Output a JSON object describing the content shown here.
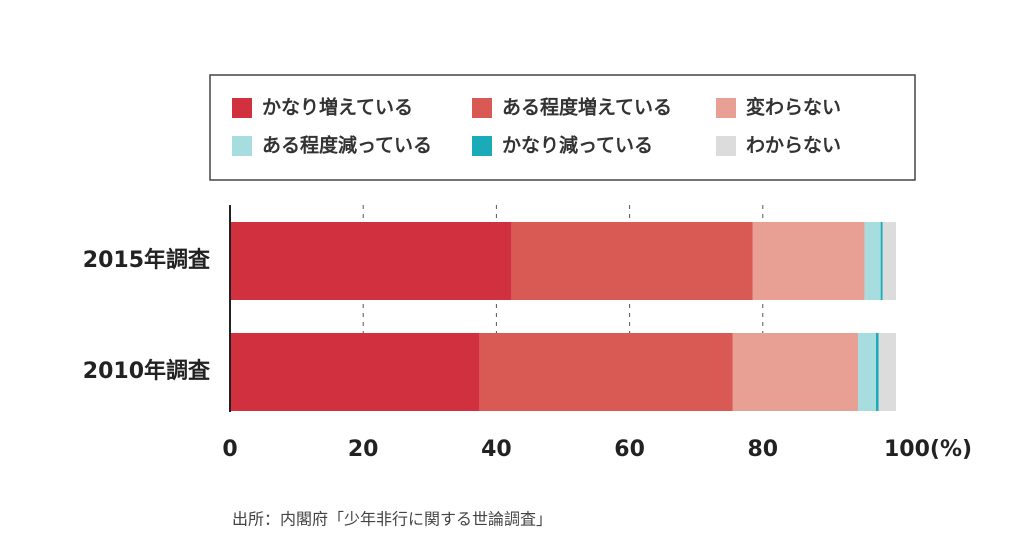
{
  "chart_data": {
    "type": "stacked_barh",
    "categories": [
      "2015年調査",
      "2010年調査"
    ],
    "series": [
      {
        "name": "かなり増えている",
        "color": "#d1303f",
        "values": [
          42.3,
          37.5
        ]
      },
      {
        "name": "ある程度増えている",
        "color": "#d95a55",
        "values": [
          36.2,
          38.0
        ]
      },
      {
        "name": "変わらない",
        "color": "#e8a095",
        "values": [
          16.8,
          18.8
        ]
      },
      {
        "name": "ある程度減っている",
        "color": "#a8dde0",
        "values": [
          2.4,
          2.7
        ]
      },
      {
        "name": "かなり減っている",
        "color": "#1aaab8",
        "values": [
          0.3,
          0.4
        ]
      },
      {
        "name": "わからない",
        "color": "#dcdcdc",
        "values": [
          2.0,
          2.6
        ]
      }
    ],
    "xlim": [
      0,
      100
    ],
    "xticks": [
      0,
      20,
      40,
      60,
      80,
      {
        "value": 100,
        "label": "100(%)"
      }
    ],
    "grid": true,
    "source": "出所：内閣府「少年非行に関する世論調査」"
  }
}
